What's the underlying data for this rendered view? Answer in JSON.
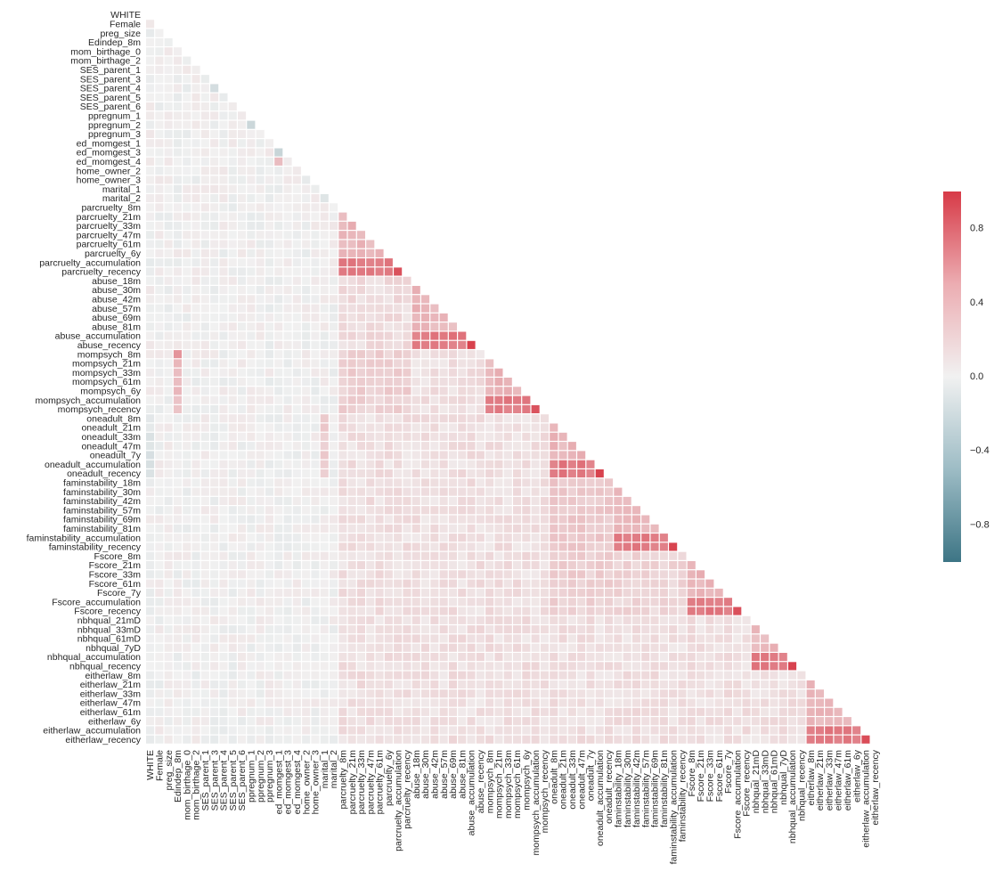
{
  "chart_data": {
    "type": "heatmap",
    "subtype": "lower-triangular correlation matrix",
    "variables": [
      "WHITE",
      "Female",
      "preg_size",
      "Edindep_8m",
      "mom_birthage_0",
      "mom_birthage_2",
      "SES_parent_1",
      "SES_parent_3",
      "SES_parent_4",
      "SES_parent_5",
      "SES_parent_6",
      "ppregnum_1",
      "ppregnum_2",
      "ppregnum_3",
      "ed_momgest_1",
      "ed_momgest_3",
      "ed_momgest_4",
      "home_owner_2",
      "home_owner_3",
      "marital_1",
      "marital_2",
      "parcruelty_8m",
      "parcruelty_21m",
      "parcruelty_33m",
      "parcruelty_47m",
      "parcruelty_61m",
      "parcruelty_6y",
      "parcruelty_accumulation",
      "parcruelty_recency",
      "abuse_18m",
      "abuse_30m",
      "abuse_42m",
      "abuse_57m",
      "abuse_69m",
      "abuse_81m",
      "abuse_accumulation",
      "abuse_recency",
      "mompsych_8m",
      "mompsych_21m",
      "mompsych_33m",
      "mompsych_61m",
      "mompsych_6y",
      "mompsych_accumulation",
      "mompsych_recency",
      "oneadult_8m",
      "oneadult_21m",
      "oneadult_33m",
      "oneadult_47m",
      "oneadult_7y",
      "oneadult_accumulation",
      "oneadult_recency",
      "faminstability_18m",
      "faminstability_30m",
      "faminstability_42m",
      "faminstability_57m",
      "faminstability_69m",
      "faminstability_81m",
      "faminstability_accumulation",
      "faminstability_recency",
      "Fscore_8m",
      "Fscore_21m",
      "Fscore_33m",
      "Fscore_61m",
      "Fscore_7y",
      "Fscore_accumulation",
      "Fscore_recency",
      "nbhqual_21mD",
      "nbhqual_33mD",
      "nbhqual_61mD",
      "nbhqual_7yD",
      "nbhqual_accumulation",
      "nbhqual_recency",
      "eitherlaw_8m",
      "eitherlaw_21m",
      "eitherlaw_33m",
      "eitherlaw_47m",
      "eitherlaw_61m",
      "eitherlaw_6y",
      "eitherlaw_accumulation",
      "eitherlaw_recency"
    ],
    "mask": "upper triangle and diagonal hidden",
    "value_range": [
      -1.0,
      1.0
    ],
    "colormap": {
      "negative": "#3d7585",
      "neutral": "#f1f1f1",
      "positive": "#d73a47"
    },
    "colorbar": {
      "ticks": [
        0.8,
        0.4,
        0.0,
        -0.4,
        -0.8
      ],
      "tick_labels": [
        "0.8",
        "0.4",
        "0.0",
        "−0.4",
        "−0.8"
      ]
    },
    "groups": [
      {
        "name": "parcruelty",
        "members": [
          "parcruelty_8m",
          "parcruelty_21m",
          "parcruelty_33m",
          "parcruelty_47m",
          "parcruelty_61m",
          "parcruelty_6y"
        ],
        "acc": "parcruelty_accumulation",
        "rec": "parcruelty_recency"
      },
      {
        "name": "abuse",
        "members": [
          "abuse_18m",
          "abuse_30m",
          "abuse_42m",
          "abuse_57m",
          "abuse_69m",
          "abuse_81m"
        ],
        "acc": "abuse_accumulation",
        "rec": "abuse_recency"
      },
      {
        "name": "mompsych",
        "members": [
          "mompsych_8m",
          "mompsych_21m",
          "mompsych_33m",
          "mompsych_61m",
          "mompsych_6y"
        ],
        "acc": "mompsych_accumulation",
        "rec": "mompsych_recency"
      },
      {
        "name": "oneadult",
        "members": [
          "oneadult_8m",
          "oneadult_21m",
          "oneadult_33m",
          "oneadult_47m",
          "oneadult_7y"
        ],
        "acc": "oneadult_accumulation",
        "rec": "oneadult_recency"
      },
      {
        "name": "faminstability",
        "members": [
          "faminstability_18m",
          "faminstability_30m",
          "faminstability_42m",
          "faminstability_57m",
          "faminstability_69m",
          "faminstability_81m"
        ],
        "acc": "faminstability_accumulation",
        "rec": "faminstability_recency"
      },
      {
        "name": "Fscore",
        "members": [
          "Fscore_8m",
          "Fscore_21m",
          "Fscore_33m",
          "Fscore_61m",
          "Fscore_7y"
        ],
        "acc": "Fscore_accumulation",
        "rec": "Fscore_recency"
      },
      {
        "name": "nbhqual",
        "members": [
          "nbhqual_21mD",
          "nbhqual_33mD",
          "nbhqual_61mD",
          "nbhqual_7yD"
        ],
        "acc": "nbhqual_accumulation",
        "rec": "nbhqual_recency"
      },
      {
        "name": "eitherlaw",
        "members": [
          "eitherlaw_8m",
          "eitherlaw_21m",
          "eitherlaw_33m",
          "eitherlaw_47m",
          "eitherlaw_61m",
          "eitherlaw_6y"
        ],
        "acc": "eitherlaw_accumulation",
        "rec": "eitherlaw_recency"
      }
    ],
    "approx_correlations": {
      "within_group_wave_to_wave": 0.32,
      "wave_to_accumulation": 0.65,
      "accumulation_to_recency": 0.92,
      "mompsych_8m_with_Edindep_8m": 0.55,
      "parcruelty_with_abuse": 0.12,
      "parcruelty_with_mompsych": 0.18,
      "oneadult_with_marital_1": 0.2,
      "oneadult_with_faminstability": 0.22,
      "oneadult_with_Fscore": 0.18,
      "Fscore_with_faminstability": 0.15,
      "SES_parent_4_with_SES_parent_3": -0.2,
      "ed_momgest_3_with_ed_momgest_1": -0.25,
      "ed_momgest_4_with_ed_momgest_1": 0.3,
      "ppregnum_2_with_ppregnum_1": -0.25,
      "marital_2_with_marital_1": -0.1,
      "WHITE_with_oneadult": -0.1
    },
    "title": "",
    "xlabel": "",
    "ylabel": ""
  }
}
